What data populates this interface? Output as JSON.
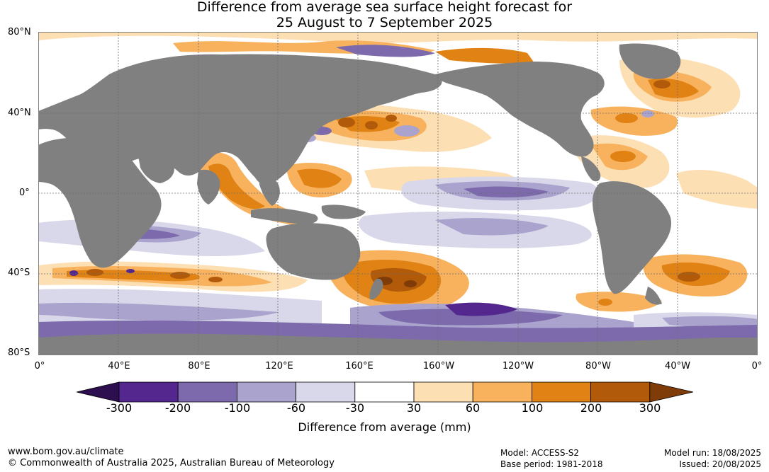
{
  "title": {
    "line1": "Difference from average sea surface height forecast for",
    "line2": "25 August to 7 September 2025"
  },
  "map": {
    "lat_labels": [
      "80°N",
      "40°N",
      "0°",
      "40°S",
      "80°S"
    ],
    "lon_labels": [
      "0°",
      "40°E",
      "80°E",
      "120°E",
      "160°E",
      "160°W",
      "120°W",
      "80°W",
      "40°W",
      "0°"
    ],
    "colors": {
      "land": "#808080",
      "ocean_neutral": "#ffffff",
      "grid": "#6e6e6e"
    }
  },
  "colorbar": {
    "ticks": [
      "-300",
      "-200",
      "-100",
      "-60",
      "-30",
      "30",
      "60",
      "100",
      "200",
      "300"
    ],
    "colors": [
      "#2d0f4f",
      "#54278f",
      "#7c6aac",
      "#aaa3cd",
      "#d9d8ea",
      "#ffffff",
      "#fddfb4",
      "#f8b25e",
      "#e08214",
      "#b15a09",
      "#7f3b08"
    ],
    "title": "Difference from average (mm)"
  },
  "footer": {
    "url": "www.bom.gov.au/climate",
    "copyright": "© Commonwealth of Australia 2025, Australian Bureau of Meteorology",
    "model": "Model: ACCESS-S2",
    "base_period": "Base period: 1981-2018",
    "model_run": "Model run: 18/08/2025",
    "issued": "Issued: 20/08/2025"
  }
}
